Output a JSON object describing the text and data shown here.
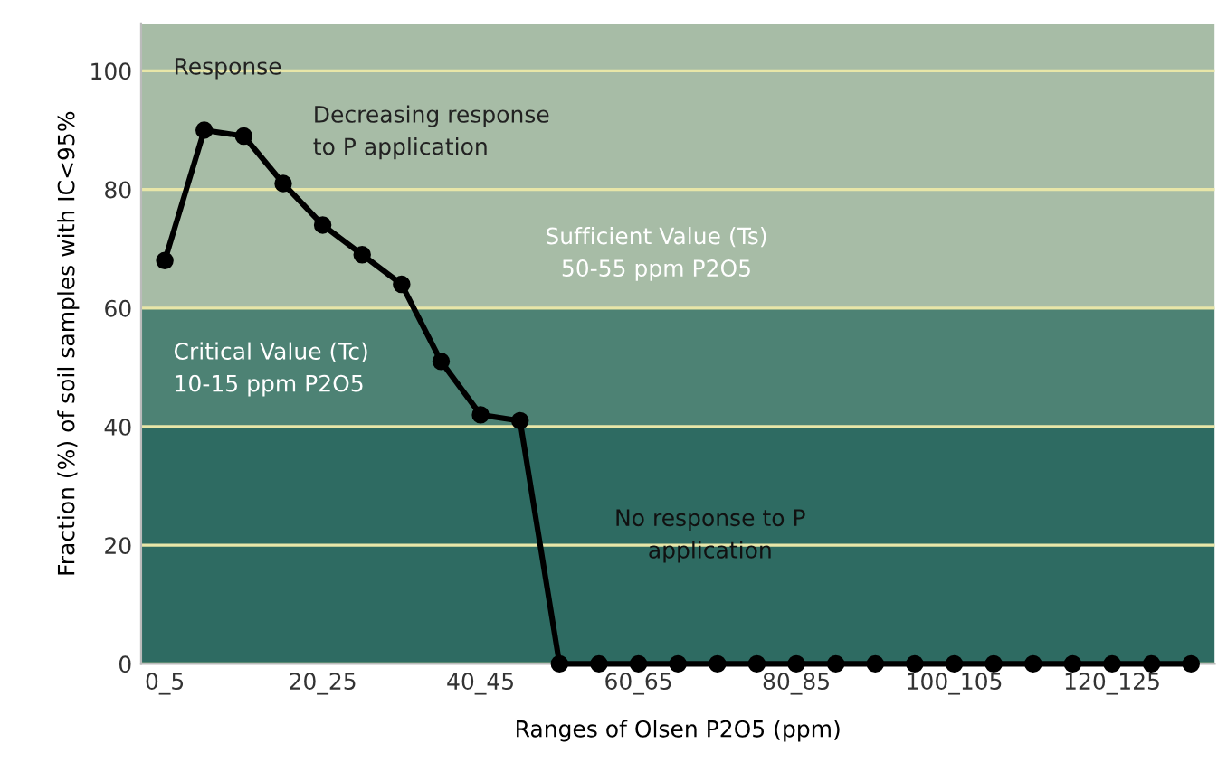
{
  "chart_data": {
    "type": "line",
    "xlabel": "Ranges of Olsen P2O5 (ppm)",
    "ylabel": "Fraction (%) of soil samples with IC<95%",
    "categories": [
      "0_5",
      null,
      null,
      null,
      "20_25",
      null,
      null,
      null,
      "40_45",
      null,
      null,
      null,
      "60_65",
      null,
      null,
      null,
      "80_85",
      null,
      null,
      null,
      "100_105",
      null,
      null,
      null,
      "120_125",
      null,
      null
    ],
    "series": [
      {
        "color": "#000000",
        "values": [
          68,
          90,
          89,
          81,
          74,
          69,
          64,
          51,
          42,
          41,
          0,
          0,
          0,
          0,
          0,
          0,
          0,
          0,
          0,
          0,
          0,
          0,
          0,
          0,
          0,
          0,
          0
        ]
      }
    ],
    "ylim": [
      0,
      108
    ],
    "yticks": [
      0,
      20,
      40,
      60,
      80,
      100
    ],
    "grid": "y",
    "marker": "circle",
    "line_style": "solid",
    "bands": [
      {
        "axis": "y",
        "from": 0,
        "to": 40,
        "color": "#2e6b62"
      },
      {
        "axis": "y",
        "from": 40,
        "to": 60,
        "color": "#4d8274"
      },
      {
        "axis": "y",
        "from": 60,
        "to": 108,
        "color": "#a7bca6"
      }
    ],
    "annotations": [
      "Response",
      "Decreasing response\nto P application",
      "Critical Value (Tc)\n10-15 ppm P2O5",
      "Sufficient Value (Ts)\n50-55 ppm P2O5",
      "No response to P\napplication"
    ]
  }
}
